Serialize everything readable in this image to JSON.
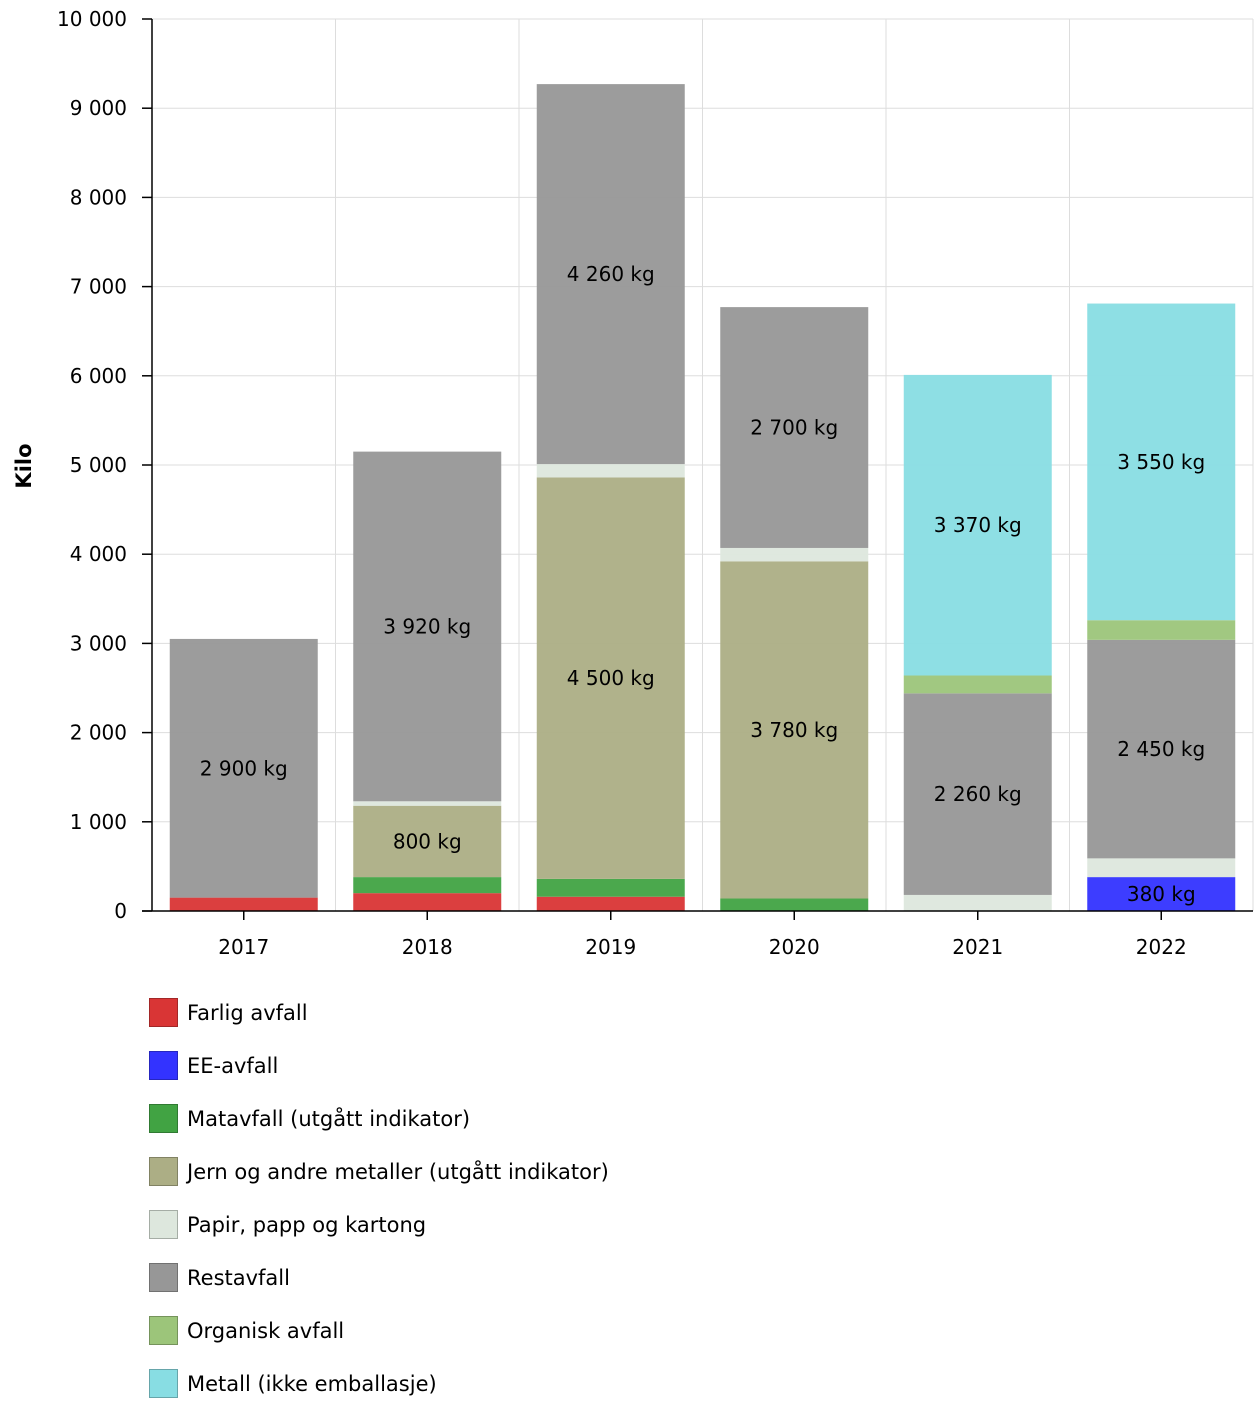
{
  "chart_data": {
    "type": "bar",
    "stacked": true,
    "categories": [
      "2017",
      "2018",
      "2019",
      "2020",
      "2021",
      "2022"
    ],
    "ylabel": "Kilo",
    "xlabel": "",
    "ylim": [
      0,
      10000
    ],
    "yticks": [
      0,
      1000,
      2000,
      3000,
      4000,
      5000,
      6000,
      7000,
      8000,
      9000,
      10000
    ],
    "ytick_labels": [
      "0",
      "1 000",
      "2 000",
      "3 000",
      "4 000",
      "5 000",
      "6 000",
      "7 000",
      "8 000",
      "9 000",
      "10 000"
    ],
    "grid": true,
    "legend_position": "bottom",
    "series": [
      {
        "name": "Farlig avfall",
        "color": "#d93535",
        "values": [
          150,
          200,
          160,
          0,
          0,
          0
        ],
        "labels": [
          "",
          "",
          "",
          "",
          "",
          ""
        ]
      },
      {
        "name": "EE-avfall",
        "color": "#3333ff",
        "values": [
          0,
          0,
          0,
          0,
          0,
          380
        ],
        "labels": [
          "",
          "",
          "",
          "",
          "",
          "380 kg"
        ]
      },
      {
        "name": "Matavfall (utgått indikator)",
        "color": "#41a343",
        "values": [
          0,
          180,
          200,
          140,
          0,
          0
        ],
        "labels": [
          "",
          "",
          "",
          "",
          "",
          ""
        ]
      },
      {
        "name": "Jern og andre metaller (utgått indikator)",
        "color": "#acae85",
        "values": [
          0,
          800,
          4500,
          3780,
          0,
          0
        ],
        "labels": [
          "",
          "800 kg",
          "4 500 kg",
          "3 780 kg",
          "",
          ""
        ]
      },
      {
        "name": "Papir, papp og kartong",
        "color": "#dde7dd",
        "values": [
          0,
          50,
          150,
          150,
          180,
          210
        ],
        "labels": [
          "",
          "",
          "",
          "",
          "",
          ""
        ]
      },
      {
        "name": "Restavfall",
        "color": "#979797",
        "values": [
          2900,
          3920,
          4260,
          2700,
          2260,
          2450
        ],
        "labels": [
          "2 900 kg",
          "3 920 kg",
          "4 260 kg",
          "2 700 kg",
          "2 260 kg",
          "2 450 kg"
        ]
      },
      {
        "name": "Organisk avfall",
        "color": "#9cc57a",
        "values": [
          0,
          0,
          0,
          0,
          200,
          220
        ],
        "labels": [
          "",
          "",
          "",
          "",
          "",
          ""
        ]
      },
      {
        "name": "Metall (ikke emballasje)",
        "color": "#88dde3",
        "values": [
          0,
          0,
          0,
          0,
          3370,
          3550
        ],
        "labels": [
          "",
          "",
          "",
          "",
          "3 370 kg",
          "3 550 kg"
        ]
      }
    ]
  }
}
